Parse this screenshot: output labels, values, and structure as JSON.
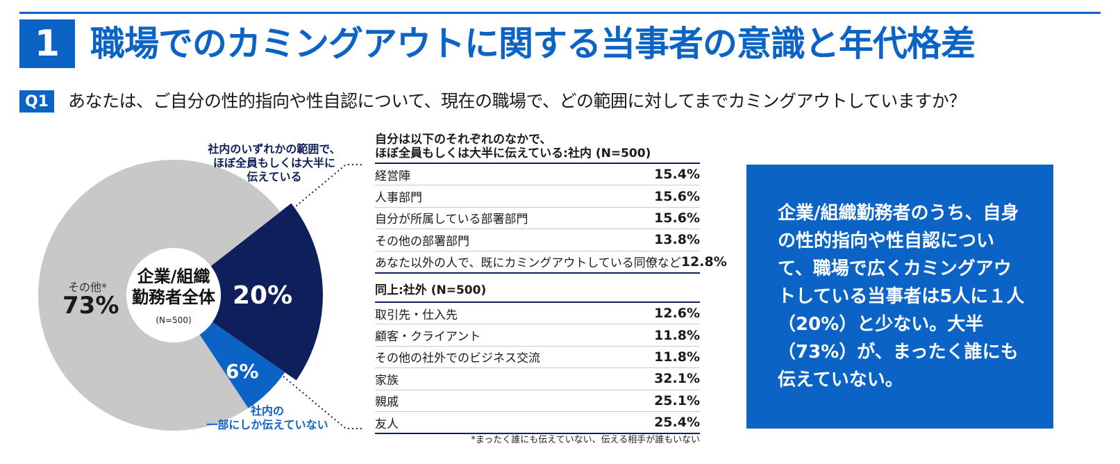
{
  "section": {
    "number": "1",
    "title": "職場でのカミングアウトに関する当事者の意識と年代格差"
  },
  "question": {
    "badge": "Q1",
    "text": "あなたは、ご自分の性的指向や性自認について、現在の職場で、どの範囲に対してまでカミングアウトしていますか？"
  },
  "donut": {
    "center_title_line1": "企業/組織",
    "center_title_line2": "勤務者全体",
    "center_n": "(N=500)",
    "other_label": "その他*",
    "other_pct": "73%",
    "inside_wide_pct": "20%",
    "inside_partial_pct": "6%",
    "annotation_top_1": "社内のいずれかの範囲で、",
    "annotation_top_2": "ほぼ全員もしくは大半に",
    "annotation_top_3": "伝えている",
    "annotation_bottom_1": "社内の",
    "annotation_bottom_2": "一部にしか伝えていない"
  },
  "table_internal": {
    "header_line1": "自分は以下のそれぞれのなかで、",
    "header_line2": "ほぼ全員もしくは大半に伝えている:社内 (N=500)",
    "rows": [
      {
        "label": "経営陣",
        "value": "15.4%"
      },
      {
        "label": "人事部門",
        "value": "15.6%"
      },
      {
        "label": "自分が所属している部署部門",
        "value": "15.6%"
      },
      {
        "label": "その他の部署部門",
        "value": "13.8%"
      },
      {
        "label": "あなた以外の人で、既にカミングアウトしている同僚など",
        "value": "12.8%"
      }
    ]
  },
  "table_external": {
    "header": "同上:社外 (N=500)",
    "rows": [
      {
        "label": "取引先・仕入先",
        "value": "12.6%"
      },
      {
        "label": "顧客・クライアント",
        "value": "11.8%"
      },
      {
        "label": "その他の社外でのビジネス交流",
        "value": "11.8%"
      },
      {
        "label": "家族",
        "value": "32.1%"
      },
      {
        "label": "親戚",
        "value": "25.1%"
      },
      {
        "label": "友人",
        "value": "25.4%"
      }
    ]
  },
  "footnote": "*まったく誰にも伝えていない、伝える相手が誰もいない",
  "callout": {
    "text": "企業/組織勤務者のうち、自身の性的指向や性自認について、職場で広くカミングアウトしている当事者は5人に１人（20%）と少ない。大半（73%）が、まったく誰にも伝えていない。"
  },
  "colors": {
    "accent": "#0b63c6",
    "navy": "#0e1f5b",
    "other_gray": "#c8c8c8"
  },
  "chart_data": {
    "type": "pie",
    "donut": true,
    "n": 500,
    "slices": [
      {
        "name": "社内のいずれかの範囲で、ほぼ全員もしくは大半に伝えている",
        "value": 20,
        "color": "#0e1f5b"
      },
      {
        "name": "社内の一部にしか伝えていない",
        "value": 6,
        "color": "#0b63c6"
      },
      {
        "name": "その他*",
        "value": 73,
        "color": "#c8c8c8"
      }
    ]
  }
}
